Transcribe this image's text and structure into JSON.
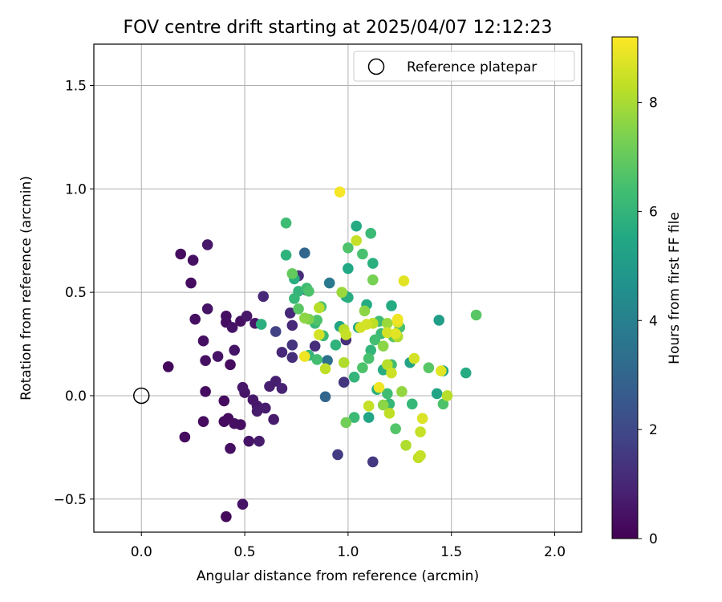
{
  "chart_data": {
    "type": "scatter",
    "title": "FOV centre drift starting at 2025/04/07 12:12:23",
    "xlabel": "Angular distance from reference (arcmin)",
    "ylabel": "Rotation from reference (arcmin)",
    "xlim": [
      -0.23,
      2.13
    ],
    "ylim": [
      -0.66,
      1.7
    ],
    "xticks": [
      0.0,
      0.5,
      1.0,
      1.5,
      2.0
    ],
    "xtick_labels": [
      "0.0",
      "0.5",
      "1.0",
      "1.5",
      "2.0"
    ],
    "yticks": [
      -0.5,
      0.0,
      0.5,
      1.0,
      1.5
    ],
    "ytick_labels": [
      "−0.5",
      "0.0",
      "0.5",
      "1.0",
      "1.5"
    ],
    "grid": true,
    "legend": {
      "placement": "top-right",
      "entries": [
        "Reference platepar"
      ]
    },
    "reference_point": {
      "x": 0.0,
      "y": 0.0
    },
    "colorbar": {
      "label": "Hours from first FF file",
      "colormap": "viridis",
      "range": [
        0,
        9.2
      ],
      "ticks": [
        0,
        2,
        4,
        6,
        8
      ],
      "tick_labels": [
        "0",
        "2",
        "4",
        "6",
        "8"
      ]
    },
    "points": [
      {
        "x": 0.13,
        "y": 0.14,
        "h": 0.2
      },
      {
        "x": 0.19,
        "y": 0.685,
        "h": 0.3
      },
      {
        "x": 0.21,
        "y": -0.2,
        "h": 0.3
      },
      {
        "x": 0.24,
        "y": 0.545,
        "h": 0.3
      },
      {
        "x": 0.25,
        "y": 0.655,
        "h": 0.4
      },
      {
        "x": 0.26,
        "y": 0.37,
        "h": 0.4
      },
      {
        "x": 0.3,
        "y": 0.265,
        "h": 0.4
      },
      {
        "x": 0.3,
        "y": -0.125,
        "h": 0.3
      },
      {
        "x": 0.31,
        "y": 0.02,
        "h": 0.3
      },
      {
        "x": 0.31,
        "y": 0.17,
        "h": 0.4
      },
      {
        "x": 0.32,
        "y": 0.42,
        "h": 0.5
      },
      {
        "x": 0.32,
        "y": 0.73,
        "h": 0.6
      },
      {
        "x": 0.37,
        "y": 0.19,
        "h": 0.5
      },
      {
        "x": 0.4,
        "y": -0.125,
        "h": 0.3
      },
      {
        "x": 0.4,
        "y": -0.025,
        "h": 0.3
      },
      {
        "x": 0.41,
        "y": 0.355,
        "h": 0.3
      },
      {
        "x": 0.41,
        "y": 0.385,
        "h": 0.4
      },
      {
        "x": 0.41,
        "y": -0.585,
        "h": 0.2
      },
      {
        "x": 0.42,
        "y": -0.11,
        "h": 0.3
      },
      {
        "x": 0.43,
        "y": 0.15,
        "h": 0.3
      },
      {
        "x": 0.43,
        "y": -0.255,
        "h": 0.4
      },
      {
        "x": 0.44,
        "y": 0.33,
        "h": 0.5
      },
      {
        "x": 0.45,
        "y": 0.22,
        "h": 0.5
      },
      {
        "x": 0.45,
        "y": -0.135,
        "h": 0.4
      },
      {
        "x": 0.48,
        "y": 0.36,
        "h": 0.4
      },
      {
        "x": 0.48,
        "y": -0.14,
        "h": 0.4
      },
      {
        "x": 0.49,
        "y": -0.525,
        "h": 0.5
      },
      {
        "x": 0.49,
        "y": 0.04,
        "h": 0.6
      },
      {
        "x": 0.5,
        "y": 0.015,
        "h": 0.5
      },
      {
        "x": 0.51,
        "y": 0.385,
        "h": 0.6
      },
      {
        "x": 0.52,
        "y": -0.22,
        "h": 0.5
      },
      {
        "x": 0.54,
        "y": -0.02,
        "h": 0.6
      },
      {
        "x": 0.55,
        "y": 0.35,
        "h": 0.6
      },
      {
        "x": 0.56,
        "y": -0.05,
        "h": 0.6
      },
      {
        "x": 0.56,
        "y": -0.075,
        "h": 0.7
      },
      {
        "x": 0.57,
        "y": -0.22,
        "h": 0.7
      },
      {
        "x": 0.59,
        "y": 0.48,
        "h": 1.0
      },
      {
        "x": 0.6,
        "y": -0.06,
        "h": 0.7
      },
      {
        "x": 0.62,
        "y": 0.045,
        "h": 0.8
      },
      {
        "x": 0.64,
        "y": -0.115,
        "h": 0.7
      },
      {
        "x": 0.65,
        "y": 0.07,
        "h": 0.8
      },
      {
        "x": 0.65,
        "y": 0.31,
        "h": 1.8
      },
      {
        "x": 0.68,
        "y": 0.035,
        "h": 0.9
      },
      {
        "x": 0.68,
        "y": 0.21,
        "h": 1.0
      },
      {
        "x": 0.72,
        "y": 0.4,
        "h": 1.0
      },
      {
        "x": 0.73,
        "y": 0.34,
        "h": 1.1
      },
      {
        "x": 0.73,
        "y": 0.245,
        "h": 1.4
      },
      {
        "x": 0.73,
        "y": 0.185,
        "h": 1.2
      },
      {
        "x": 0.76,
        "y": 0.58,
        "h": 1.2
      },
      {
        "x": 0.79,
        "y": 0.69,
        "h": 3.0
      },
      {
        "x": 0.8,
        "y": 0.51,
        "h": 1.1
      },
      {
        "x": 0.84,
        "y": 0.24,
        "h": 1.2
      },
      {
        "x": 0.89,
        "y": -0.005,
        "h": 3.0
      },
      {
        "x": 0.9,
        "y": 0.17,
        "h": 3.4
      },
      {
        "x": 0.91,
        "y": 0.545,
        "h": 3.7
      },
      {
        "x": 0.95,
        "y": -0.285,
        "h": 1.6
      },
      {
        "x": 0.98,
        "y": 0.065,
        "h": 1.4
      },
      {
        "x": 0.99,
        "y": 0.27,
        "h": 1.2
      },
      {
        "x": 1.12,
        "y": -0.32,
        "h": 1.5
      },
      {
        "x": 0.58,
        "y": 0.345,
        "h": 5.8
      },
      {
        "x": 0.7,
        "y": 0.835,
        "h": 6.3
      },
      {
        "x": 0.7,
        "y": 0.68,
        "h": 5.9
      },
      {
        "x": 0.74,
        "y": 0.565,
        "h": 5.7
      },
      {
        "x": 0.74,
        "y": 0.47,
        "h": 6.1
      },
      {
        "x": 0.76,
        "y": 0.505,
        "h": 6.0
      },
      {
        "x": 0.76,
        "y": 0.42,
        "h": 6.8
      },
      {
        "x": 0.8,
        "y": 0.52,
        "h": 6.3
      },
      {
        "x": 0.81,
        "y": 0.505,
        "h": 6.6
      },
      {
        "x": 0.81,
        "y": 0.195,
        "h": 6.0
      },
      {
        "x": 0.84,
        "y": 0.35,
        "h": 6.1
      },
      {
        "x": 0.85,
        "y": 0.365,
        "h": 6.6
      },
      {
        "x": 0.85,
        "y": 0.175,
        "h": 6.4
      },
      {
        "x": 0.87,
        "y": 0.43,
        "h": 6.5
      },
      {
        "x": 0.88,
        "y": 0.29,
        "h": 6.2
      },
      {
        "x": 0.94,
        "y": 0.245,
        "h": 5.9
      },
      {
        "x": 0.96,
        "y": 0.335,
        "h": 5.4
      },
      {
        "x": 0.99,
        "y": 0.48,
        "h": 5.6
      },
      {
        "x": 1.0,
        "y": 0.475,
        "h": 5.7
      },
      {
        "x": 1.0,
        "y": 0.615,
        "h": 5.5
      },
      {
        "x": 1.0,
        "y": 0.715,
        "h": 6.6
      },
      {
        "x": 1.03,
        "y": 0.09,
        "h": 6.0
      },
      {
        "x": 1.03,
        "y": -0.105,
        "h": 6.2
      },
      {
        "x": 1.04,
        "y": 0.82,
        "h": 5.6
      },
      {
        "x": 1.05,
        "y": 0.33,
        "h": 5.4
      },
      {
        "x": 1.07,
        "y": 0.685,
        "h": 6.5
      },
      {
        "x": 1.07,
        "y": 0.135,
        "h": 6.6
      },
      {
        "x": 1.09,
        "y": 0.44,
        "h": 5.6
      },
      {
        "x": 1.1,
        "y": -0.105,
        "h": 5.4
      },
      {
        "x": 1.1,
        "y": 0.18,
        "h": 6.5
      },
      {
        "x": 1.11,
        "y": 0.22,
        "h": 6.0
      },
      {
        "x": 1.11,
        "y": 0.785,
        "h": 6.2
      },
      {
        "x": 1.12,
        "y": 0.64,
        "h": 5.8
      },
      {
        "x": 1.13,
        "y": 0.27,
        "h": 6.4
      },
      {
        "x": 1.14,
        "y": 0.03,
        "h": 5.8
      },
      {
        "x": 1.15,
        "y": 0.36,
        "h": 6.3
      },
      {
        "x": 1.16,
        "y": 0.3,
        "h": 6.2
      },
      {
        "x": 1.17,
        "y": 0.125,
        "h": 5.7
      },
      {
        "x": 1.19,
        "y": 0.01,
        "h": 6.3
      },
      {
        "x": 1.2,
        "y": -0.04,
        "h": 6.1
      },
      {
        "x": 1.21,
        "y": 0.435,
        "h": 5.6
      },
      {
        "x": 1.21,
        "y": 0.15,
        "h": 6.4
      },
      {
        "x": 1.22,
        "y": 0.285,
        "h": 6.8
      },
      {
        "x": 1.23,
        "y": -0.16,
        "h": 6.7
      },
      {
        "x": 1.25,
        "y": 0.33,
        "h": 6.5
      },
      {
        "x": 1.3,
        "y": 0.16,
        "h": 5.3
      },
      {
        "x": 1.31,
        "y": -0.04,
        "h": 6.1
      },
      {
        "x": 1.39,
        "y": 0.135,
        "h": 6.8
      },
      {
        "x": 1.43,
        "y": 0.01,
        "h": 5.3
      },
      {
        "x": 1.44,
        "y": 0.365,
        "h": 5.1
      },
      {
        "x": 1.46,
        "y": -0.04,
        "h": 6.6
      },
      {
        "x": 1.46,
        "y": 0.12,
        "h": 5.4
      },
      {
        "x": 1.57,
        "y": 0.11,
        "h": 5.6
      },
      {
        "x": 1.62,
        "y": 0.39,
        "h": 6.8
      },
      {
        "x": 0.73,
        "y": 0.59,
        "h": 7.0
      },
      {
        "x": 0.79,
        "y": 0.375,
        "h": 7.6
      },
      {
        "x": 0.81,
        "y": 0.37,
        "h": 7.4
      },
      {
        "x": 0.86,
        "y": 0.295,
        "h": 8.6
      },
      {
        "x": 0.86,
        "y": 0.425,
        "h": 8.2
      },
      {
        "x": 0.89,
        "y": 0.13,
        "h": 8.3
      },
      {
        "x": 0.79,
        "y": 0.19,
        "h": 9.0
      },
      {
        "x": 0.96,
        "y": 0.985,
        "h": 9.1
      },
      {
        "x": 0.97,
        "y": 0.5,
        "h": 7.8
      },
      {
        "x": 0.98,
        "y": 0.32,
        "h": 8.2
      },
      {
        "x": 0.98,
        "y": 0.16,
        "h": 8.1
      },
      {
        "x": 0.99,
        "y": 0.295,
        "h": 8.4
      },
      {
        "x": 0.99,
        "y": -0.13,
        "h": 7.2
      },
      {
        "x": 1.04,
        "y": 0.75,
        "h": 8.4
      },
      {
        "x": 1.06,
        "y": 0.33,
        "h": 8.6
      },
      {
        "x": 1.08,
        "y": 0.41,
        "h": 7.6
      },
      {
        "x": 1.09,
        "y": 0.345,
        "h": 8.6
      },
      {
        "x": 1.1,
        "y": -0.05,
        "h": 8.4
      },
      {
        "x": 1.12,
        "y": 0.35,
        "h": 8.3
      },
      {
        "x": 1.12,
        "y": 0.56,
        "h": 7.3
      },
      {
        "x": 1.15,
        "y": 0.04,
        "h": 9.0
      },
      {
        "x": 1.17,
        "y": 0.24,
        "h": 7.6
      },
      {
        "x": 1.17,
        "y": -0.045,
        "h": 7.6
      },
      {
        "x": 1.19,
        "y": 0.35,
        "h": 7.8
      },
      {
        "x": 1.19,
        "y": 0.15,
        "h": 8.2
      },
      {
        "x": 1.19,
        "y": 0.305,
        "h": 8.6
      },
      {
        "x": 1.2,
        "y": -0.085,
        "h": 8.3
      },
      {
        "x": 1.21,
        "y": 0.11,
        "h": 8.5
      },
      {
        "x": 1.23,
        "y": 0.3,
        "h": 8.8
      },
      {
        "x": 1.24,
        "y": 0.37,
        "h": 9.0
      },
      {
        "x": 1.24,
        "y": 0.355,
        "h": 8.8
      },
      {
        "x": 1.24,
        "y": 0.285,
        "h": 8.1
      },
      {
        "x": 1.26,
        "y": 0.02,
        "h": 7.7
      },
      {
        "x": 1.27,
        "y": 0.555,
        "h": 8.8
      },
      {
        "x": 1.28,
        "y": -0.24,
        "h": 8.1
      },
      {
        "x": 1.32,
        "y": 0.18,
        "h": 8.6
      },
      {
        "x": 1.34,
        "y": -0.3,
        "h": 8.3
      },
      {
        "x": 1.35,
        "y": -0.29,
        "h": 8.4
      },
      {
        "x": 1.35,
        "y": -0.175,
        "h": 8.4
      },
      {
        "x": 1.36,
        "y": -0.11,
        "h": 8.7
      },
      {
        "x": 1.45,
        "y": 0.12,
        "h": 8.8
      },
      {
        "x": 1.48,
        "y": 0.0,
        "h": 8.2
      }
    ]
  }
}
